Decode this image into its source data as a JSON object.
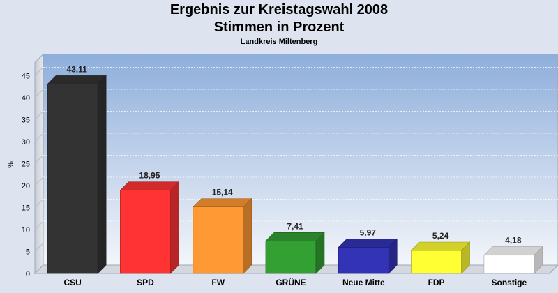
{
  "chart_data": {
    "type": "bar",
    "title": "Ergebnis zur Kreistagswahl 2008",
    "subtitle": "Stimmen in Prozent",
    "subtitle2": "Landkreis Miltenberg",
    "xlabel": "",
    "ylabel": "%",
    "ylim": [
      0,
      48
    ],
    "yticks": [
      0,
      5,
      10,
      15,
      20,
      25,
      30,
      35,
      40,
      45
    ],
    "grid": true,
    "categories": [
      "CSU",
      "SPD",
      "FW",
      "GRÜNE",
      "Neue Mitte",
      "FDP",
      "Sonstige"
    ],
    "values": [
      43.11,
      18.95,
      15.14,
      7.41,
      5.97,
      5.24,
      4.18
    ],
    "value_labels": [
      "43,11",
      "18,95",
      "15,14",
      "7,41",
      "5,97",
      "5,24",
      "4,18"
    ],
    "colors": [
      "#333333",
      "#ff3333",
      "#ff9933",
      "#33a033",
      "#3333b8",
      "#ffff33",
      "#ffffff"
    ]
  }
}
